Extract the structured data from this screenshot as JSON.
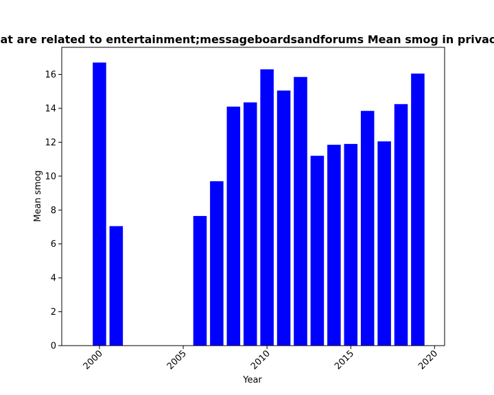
{
  "chart_data": {
    "type": "bar",
    "title": "Sites that are related to entertainment;messageboardsandforums Mean smog in privacy policies",
    "xlabel": "Year",
    "ylabel": "Mean smog",
    "x": [
      2000,
      2001,
      2006,
      2007,
      2008,
      2009,
      2010,
      2011,
      2012,
      2013,
      2014,
      2015,
      2016,
      2017,
      2018,
      2019
    ],
    "values": [
      16.7,
      7.05,
      7.65,
      9.7,
      14.1,
      14.35,
      16.3,
      15.05,
      15.85,
      11.2,
      11.85,
      11.9,
      13.85,
      12.05,
      14.25,
      16.05
    ],
    "xlim": [
      1997.75,
      2020.6
    ],
    "ylim": [
      0,
      17.6
    ],
    "xticks": [
      2000,
      2005,
      2010,
      2015,
      2020
    ],
    "yticks": [
      0,
      2,
      4,
      6,
      8,
      10,
      12,
      14,
      16
    ],
    "bar_color": "#0000ff",
    "grid": false
  }
}
